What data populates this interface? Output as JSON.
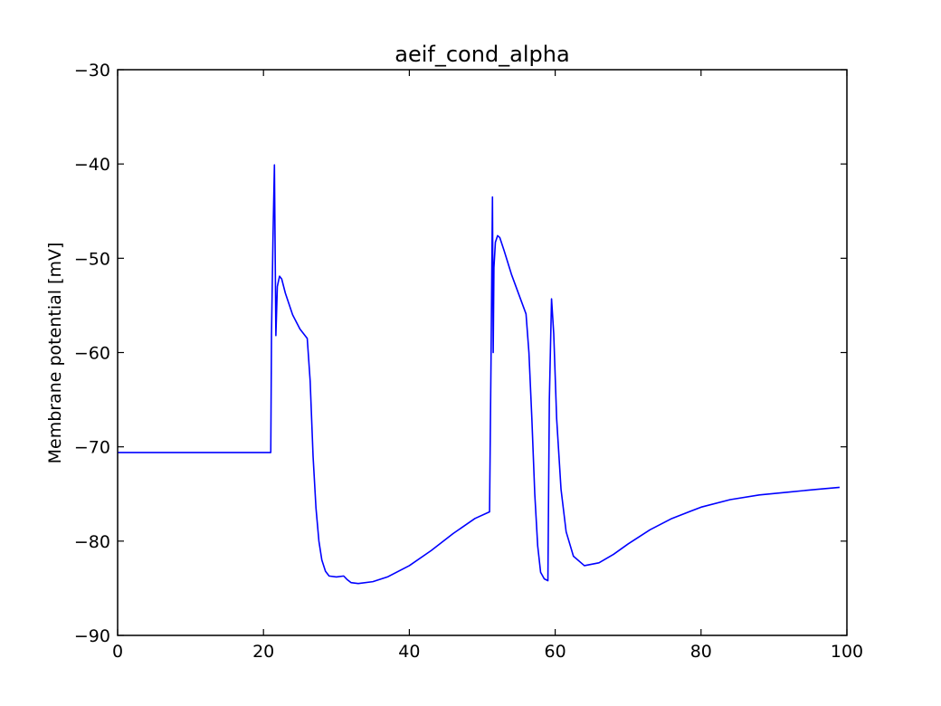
{
  "chart_data": {
    "type": "line",
    "title": "aeif_cond_alpha",
    "xlabel": "",
    "ylabel": "Membrane potential [mV]",
    "xlim": [
      0,
      100
    ],
    "ylim": [
      -90,
      -30
    ],
    "xticks": [
      0,
      20,
      40,
      60,
      80,
      100
    ],
    "yticks": [
      -30,
      -40,
      -50,
      -60,
      -70,
      -80,
      -90
    ],
    "xtick_labels": [
      "0",
      "20",
      "40",
      "60",
      "80",
      "100"
    ],
    "ytick_labels": [
      "−30",
      "−40",
      "−50",
      "−60",
      "−70",
      "−80",
      "−90"
    ],
    "grid": false,
    "line_color": "#0000ff",
    "series": [
      {
        "x": [
          0,
          21,
          21.1,
          21.3,
          21.5,
          21.7,
          21.9,
          22.2,
          22.5,
          23,
          24,
          25,
          26,
          26.4,
          26.8,
          27.2,
          27.6,
          28,
          28.5,
          29,
          30,
          31,
          31.5,
          32,
          33,
          35,
          37,
          40,
          43,
          46,
          49,
          51,
          51.2,
          51.4,
          51.5,
          51.6,
          51.8,
          52.1,
          52.4,
          53,
          54,
          55,
          56,
          56.4,
          56.8,
          57.2,
          57.6,
          58,
          58.5,
          59,
          59.2,
          59.5,
          59.8,
          60.2,
          60.8,
          61.5,
          62.5,
          64,
          66,
          68,
          70,
          73,
          76,
          80,
          84,
          88,
          92,
          96,
          99
        ],
        "y": [
          -70.6,
          -70.6,
          -58,
          -48,
          -40.1,
          -58.2,
          -53,
          -51.9,
          -52.2,
          -53.7,
          -56,
          -57.5,
          -58.5,
          -63,
          -71,
          -76.5,
          -80,
          -82,
          -83.2,
          -83.7,
          -83.8,
          -83.7,
          -84.1,
          -84.4,
          -84.5,
          -84.3,
          -83.8,
          -82.6,
          -81,
          -79.2,
          -77.6,
          -76.9,
          -61,
          -43.5,
          -60,
          -51,
          -48.3,
          -47.6,
          -47.8,
          -49.2,
          -51.7,
          -53.8,
          -55.9,
          -60,
          -67,
          -75,
          -80.5,
          -83.3,
          -84,
          -84.2,
          -65,
          -54.3,
          -58,
          -67,
          -74.5,
          -79,
          -81.6,
          -82.6,
          -82.3,
          -81.4,
          -80.3,
          -78.8,
          -77.6,
          -76.4,
          -75.6,
          -75.1,
          -74.8,
          -74.5,
          -74.3
        ]
      }
    ]
  }
}
